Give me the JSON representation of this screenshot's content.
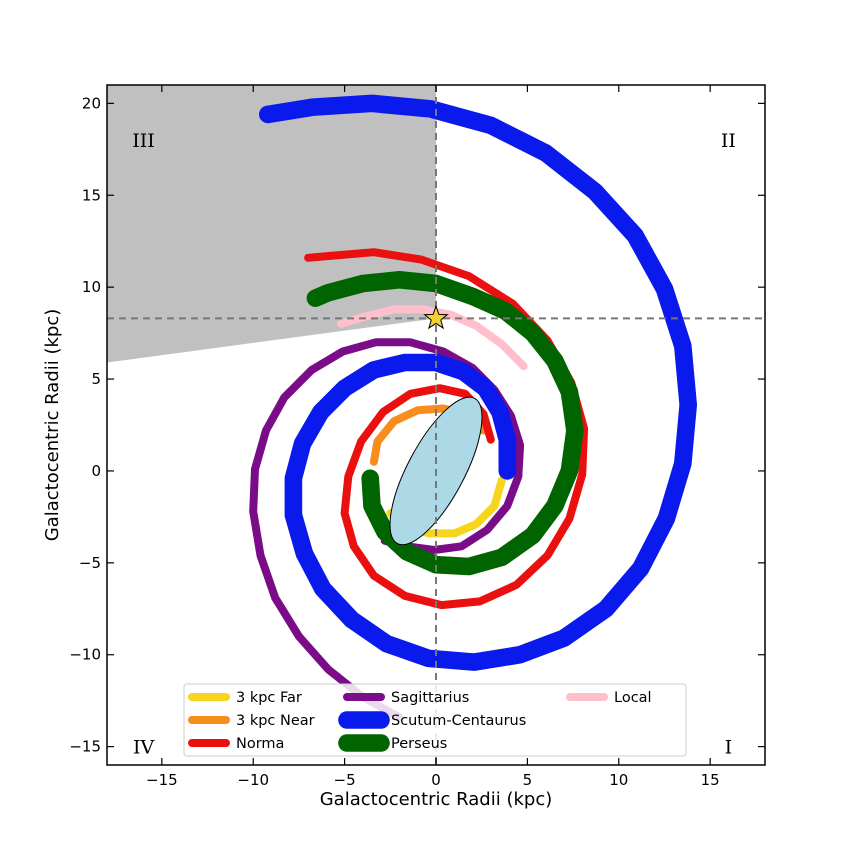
{
  "chart_data": {
    "type": "line",
    "xlabel": "Galactocentric Radii (kpc)",
    "ylabel": "Galactocentric Radii (kpc)",
    "xlim": [
      -18,
      18
    ],
    "ylim": [
      -16,
      21
    ],
    "xticks": [
      -15,
      -10,
      -5,
      0,
      5,
      10,
      15
    ],
    "yticks": [
      -15,
      -10,
      -5,
      0,
      5,
      10,
      15,
      20
    ],
    "tick_labels": {
      "x": [
        "−15",
        "−10",
        "−5",
        "0",
        "5",
        "10",
        "15"
      ],
      "y": [
        "−15",
        "−10",
        "−5",
        "0",
        "5",
        "10",
        "15",
        "20"
      ]
    },
    "grid": false,
    "legend_position": "bottom-center",
    "legend_columns": 3,
    "sun": {
      "x": 0,
      "y": 8.3,
      "marker": "star",
      "color": "#f5d130"
    },
    "reference_lines": {
      "vertical_x": 0,
      "horizontal_y": 8.3,
      "style": "dashed",
      "color": "#777777"
    },
    "shaded_region": {
      "color": "#c0c0c0",
      "polygon": [
        [
          -18,
          21
        ],
        [
          0,
          21
        ],
        [
          0,
          8.3
        ],
        [
          -18,
          5.9
        ]
      ]
    },
    "bar": {
      "center": [
        0,
        0
      ],
      "length": 9.0,
      "width": 3.1,
      "angle_deg": 62,
      "color": "#add8e6"
    },
    "quadrants": [
      {
        "label": "I",
        "x": 16,
        "y": -15
      },
      {
        "label": "II",
        "x": 16,
        "y": 18
      },
      {
        "label": "III",
        "x": -16,
        "y": 18
      },
      {
        "label": "IV",
        "x": -16,
        "y": -15
      }
    ],
    "series": [
      {
        "name": "3 kpc Far",
        "color": "#f7d51d",
        "linewidth": 5,
        "points": [
          [
            3.6,
            -0.5
          ],
          [
            3.2,
            -1.9
          ],
          [
            2.2,
            -2.9
          ],
          [
            1.0,
            -3.4
          ],
          [
            -0.4,
            -3.4
          ],
          [
            -1.6,
            -3.0
          ],
          [
            -2.5,
            -2.3
          ]
        ]
      },
      {
        "name": "3 kpc Near",
        "color": "#f68d1d",
        "linewidth": 5,
        "points": [
          [
            -3.4,
            0.5
          ],
          [
            -3.2,
            1.6
          ],
          [
            -2.3,
            2.7
          ],
          [
            -1.0,
            3.3
          ],
          [
            0.4,
            3.4
          ],
          [
            1.7,
            3.1
          ],
          [
            2.6,
            2.2
          ]
        ]
      },
      {
        "name": "Norma",
        "color": "#ea1010",
        "linewidth": 5,
        "points": [
          [
            3.0,
            1.7
          ],
          [
            2.6,
            3.1
          ],
          [
            1.6,
            4.2
          ],
          [
            0.2,
            4.5
          ],
          [
            -1.4,
            4.2
          ],
          [
            -2.9,
            3.2
          ],
          [
            -4.1,
            1.6
          ],
          [
            -4.8,
            -0.3
          ],
          [
            -5.0,
            -2.3
          ],
          [
            -4.5,
            -4.1
          ],
          [
            -3.4,
            -5.7
          ],
          [
            -1.7,
            -6.8
          ],
          [
            0.3,
            -7.3
          ],
          [
            2.4,
            -7.1
          ],
          [
            4.4,
            -6.2
          ],
          [
            6.1,
            -4.6
          ],
          [
            7.3,
            -2.6
          ],
          [
            8.0,
            -0.2
          ],
          [
            8.1,
            2.3
          ],
          [
            7.4,
            4.8
          ],
          [
            6.1,
            7.1
          ],
          [
            4.2,
            9.1
          ],
          [
            1.8,
            10.6
          ],
          [
            -0.8,
            11.5
          ],
          [
            -3.4,
            11.9
          ],
          [
            -5.8,
            11.7
          ],
          [
            -7.0,
            11.6
          ]
        ]
      },
      {
        "name": "Sagittarius",
        "color": "#7a0c87",
        "linewidth": 5,
        "points": [
          [
            -2.8,
            -3.8
          ],
          [
            -1.6,
            -4.1
          ],
          [
            -0.1,
            -4.3
          ],
          [
            1.4,
            -4.1
          ],
          [
            2.8,
            -3.2
          ],
          [
            3.9,
            -1.9
          ],
          [
            4.5,
            -0.3
          ],
          [
            4.6,
            1.4
          ],
          [
            4.1,
            3.0
          ],
          [
            3.2,
            4.4
          ],
          [
            2.0,
            5.6
          ],
          [
            0.4,
            6.5
          ],
          [
            -1.4,
            7.0
          ],
          [
            -3.3,
            7.0
          ],
          [
            -5.1,
            6.5
          ],
          [
            -6.8,
            5.5
          ],
          [
            -8.3,
            4.0
          ],
          [
            -9.3,
            2.2
          ],
          [
            -9.9,
            0.1
          ],
          [
            -10.0,
            -2.2
          ],
          [
            -9.6,
            -4.6
          ],
          [
            -8.8,
            -6.9
          ],
          [
            -7.5,
            -9.0
          ],
          [
            -5.9,
            -10.8
          ],
          [
            -4.0,
            -12.3
          ],
          [
            -2.0,
            -13.4
          ]
        ]
      },
      {
        "name": "Scutum-Centaurus",
        "color": "#0a1aec",
        "linewidth": 11,
        "points": [
          [
            3.9,
            0.0
          ],
          [
            3.9,
            1.7
          ],
          [
            3.5,
            3.2
          ],
          [
            2.7,
            4.5
          ],
          [
            1.5,
            5.4
          ],
          [
            0.0,
            5.9
          ],
          [
            -1.7,
            5.9
          ],
          [
            -3.4,
            5.5
          ],
          [
            -5.0,
            4.5
          ],
          [
            -6.3,
            3.2
          ],
          [
            -7.3,
            1.5
          ],
          [
            -7.8,
            -0.4
          ],
          [
            -7.8,
            -2.4
          ],
          [
            -7.2,
            -4.5
          ],
          [
            -6.2,
            -6.4
          ],
          [
            -4.6,
            -8.1
          ],
          [
            -2.7,
            -9.4
          ],
          [
            -0.4,
            -10.2
          ],
          [
            2.1,
            -10.4
          ],
          [
            4.6,
            -10.0
          ],
          [
            7.0,
            -9.1
          ],
          [
            9.3,
            -7.5
          ],
          [
            11.2,
            -5.3
          ],
          [
            12.6,
            -2.6
          ],
          [
            13.5,
            0.4
          ],
          [
            13.8,
            3.6
          ],
          [
            13.5,
            6.8
          ],
          [
            12.5,
            9.9
          ],
          [
            10.9,
            12.8
          ],
          [
            8.7,
            15.2
          ],
          [
            6.0,
            17.3
          ],
          [
            3.0,
            18.8
          ],
          [
            -0.3,
            19.7
          ],
          [
            -3.5,
            20.0
          ],
          [
            -6.7,
            19.8
          ],
          [
            -9.2,
            19.4
          ]
        ]
      },
      {
        "name": "Perseus",
        "color": "#006400",
        "linewidth": 11,
        "points": [
          [
            -3.6,
            -0.4
          ],
          [
            -3.5,
            -1.9
          ],
          [
            -2.8,
            -3.3
          ],
          [
            -1.6,
            -4.4
          ],
          [
            0.0,
            -5.1
          ],
          [
            1.8,
            -5.2
          ],
          [
            3.6,
            -4.7
          ],
          [
            5.3,
            -3.5
          ],
          [
            6.5,
            -1.9
          ],
          [
            7.3,
            0.0
          ],
          [
            7.6,
            2.2
          ],
          [
            7.3,
            4.3
          ],
          [
            6.5,
            6.0
          ],
          [
            5.3,
            7.5
          ],
          [
            3.8,
            8.7
          ],
          [
            2.0,
            9.5
          ],
          [
            0.0,
            10.2
          ],
          [
            -2.0,
            10.4
          ],
          [
            -4.0,
            10.2
          ],
          [
            -5.9,
            9.7
          ],
          [
            -6.6,
            9.4
          ]
        ]
      },
      {
        "name": "Local",
        "color": "#ffc0cb",
        "linewidth": 5,
        "points": [
          [
            4.8,
            5.7
          ],
          [
            3.6,
            6.9
          ],
          [
            2.2,
            7.9
          ],
          [
            0.8,
            8.5
          ],
          [
            -0.8,
            8.8
          ],
          [
            -2.3,
            8.8
          ],
          [
            -3.9,
            8.4
          ],
          [
            -5.2,
            8.0
          ]
        ]
      }
    ]
  }
}
